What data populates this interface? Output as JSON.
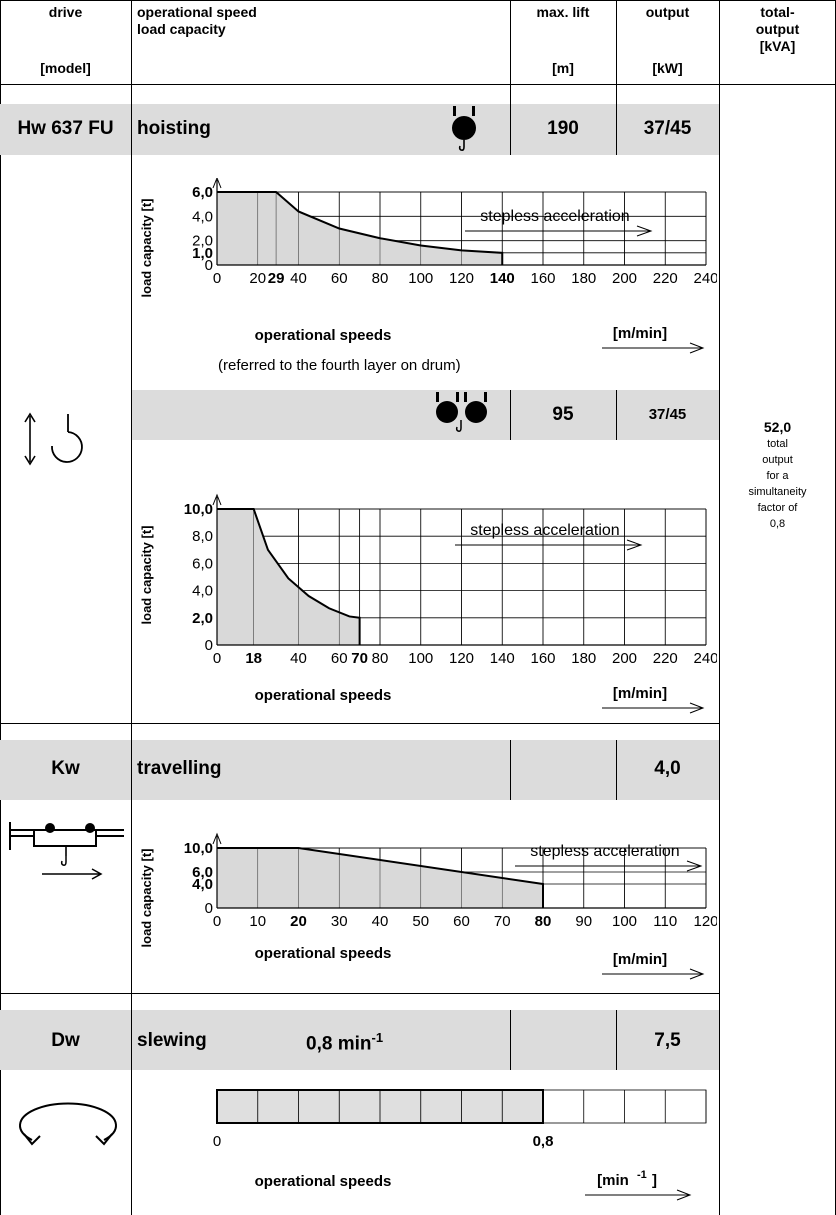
{
  "header": {
    "drive": "drive",
    "model": "[model]",
    "speed_line1": "operational speed",
    "speed_line2": "load capacity",
    "max_lift": "max. lift",
    "max_lift_unit": "[m]",
    "output": "output",
    "output_unit": "[kW]",
    "total1": "total-",
    "total2": "output",
    "total_unit": "[kVA]"
  },
  "hoisting": {
    "model": "Hw 637 FU",
    "label": "hoisting",
    "max_lift": "190",
    "output": "37/45",
    "note": "(referred to the fourth layer on drum)",
    "max_lift_2": "95",
    "output_2": "37/45"
  },
  "travelling": {
    "model": "Kw",
    "label": "travelling",
    "max_lift": "",
    "output": "4,0"
  },
  "slewing": {
    "model": "Dw",
    "label": "slewing",
    "speed": "0,8 min",
    "speed_exp": "-1",
    "max_lift": "",
    "output": "7,5"
  },
  "total": {
    "value": "52,0",
    "line1": "total",
    "line2": "output",
    "line3": "for a",
    "line4": "simultaneity",
    "line5": "factor of",
    "line6": "0,8"
  },
  "chart_data": [
    {
      "type": "area",
      "xlabel": "operational speeds",
      "unit": "[m/min]",
      "ylabel": "load capacity [t]",
      "annotation": "stepless acceleration",
      "xlim": [
        0,
        240
      ],
      "ylim": [
        0,
        6
      ],
      "x_ticks": [
        "0",
        "20",
        "29",
        "40",
        "60",
        "80",
        "100",
        "120",
        "140",
        "160",
        "180",
        "200",
        "220",
        "240"
      ],
      "bold_x_ticks": [
        "29",
        "140"
      ],
      "y_ticks": [
        "0",
        "1,0",
        "2,0",
        "4,0",
        "6,0"
      ],
      "bold_y_ticks": [
        "1,0",
        "6,0"
      ],
      "x": [
        0,
        29,
        40,
        60,
        80,
        100,
        120,
        140
      ],
      "y": [
        6.0,
        6.0,
        4.4,
        3.0,
        2.2,
        1.6,
        1.2,
        1.0
      ]
    },
    {
      "type": "area",
      "xlabel": "operational speeds",
      "unit": "[m/min]",
      "ylabel": "load capacity [t]",
      "annotation": "stepless acceleration",
      "xlim": [
        0,
        240
      ],
      "ylim": [
        0,
        10
      ],
      "x_ticks": [
        "0",
        "18",
        "40",
        "60",
        "70",
        "80",
        "100",
        "120",
        "140",
        "160",
        "180",
        "200",
        "220",
        "240"
      ],
      "bold_x_ticks": [
        "18",
        "70"
      ],
      "y_ticks": [
        "0",
        "2,0",
        "4,0",
        "6,0",
        "8,0",
        "10,0"
      ],
      "bold_y_ticks": [
        "2,0",
        "10,0"
      ],
      "x": [
        0,
        18,
        25,
        35,
        45,
        55,
        65,
        70
      ],
      "y": [
        10.0,
        10.0,
        7.0,
        4.9,
        3.6,
        2.7,
        2.1,
        2.0
      ]
    },
    {
      "type": "area",
      "xlabel": "operational speeds",
      "unit": "[m/min]",
      "ylabel": "load capacity [t]",
      "annotation": "stepless acceleration",
      "xlim": [
        0,
        120
      ],
      "ylim": [
        0,
        10
      ],
      "x_ticks": [
        "0",
        "10",
        "20",
        "30",
        "40",
        "50",
        "60",
        "70",
        "80",
        "90",
        "100",
        "110",
        "120"
      ],
      "bold_x_ticks": [
        "20",
        "80"
      ],
      "y_ticks": [
        "0",
        "4,0",
        "6,0",
        "10,0"
      ],
      "bold_y_ticks": [
        "4,0",
        "6,0",
        "10,0"
      ],
      "x": [
        0,
        20,
        80
      ],
      "y": [
        10.0,
        10.0,
        4.0
      ]
    },
    {
      "type": "bar",
      "xlabel": "operational speeds",
      "unit": "[min",
      "unit_exp": "-1",
      "unit_close": "]",
      "x_ticks": [
        "0",
        "0,8"
      ],
      "xlim": [
        0,
        1.2
      ],
      "value": 0.8
    }
  ]
}
